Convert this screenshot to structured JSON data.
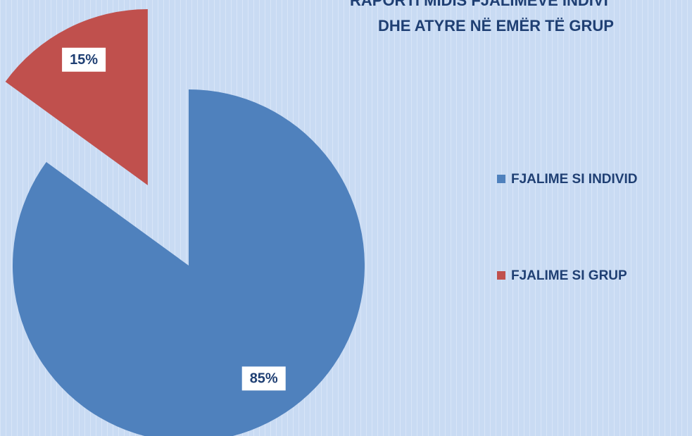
{
  "chart_data": {
    "type": "pie",
    "title": [
      "RAPORTI MIDIS FJALIMEVE INDIVI",
      "DHE ATYRE NË EMËR TË GRUP"
    ],
    "categories": [
      "FJALIME SI INDIVID",
      "FJALIME SI GRUP"
    ],
    "values": [
      85,
      15
    ],
    "value_labels": [
      "85%",
      "15%"
    ],
    "colors": [
      "#4f81bd",
      "#c0504d"
    ],
    "exploded": [
      false,
      true
    ]
  }
}
